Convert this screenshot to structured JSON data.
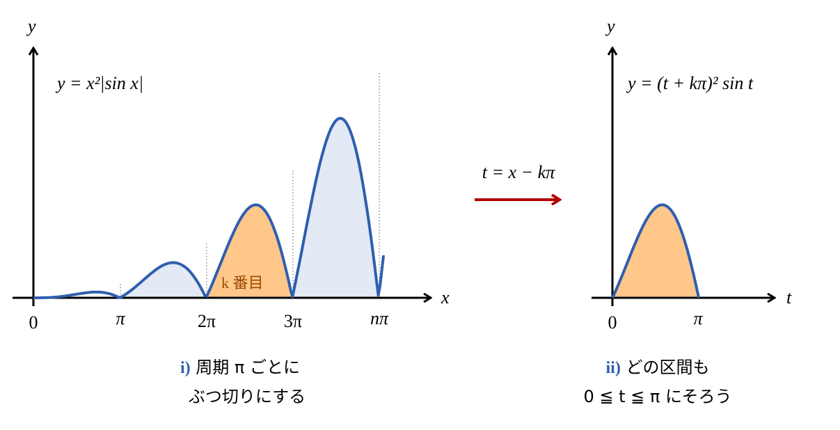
{
  "left": {
    "y_label": "y",
    "x_label": "x",
    "equation": "y = x²|sin x|",
    "ticks": [
      "0",
      "π",
      "2π",
      "3π",
      "nπ"
    ],
    "highlight_label": "k 番目",
    "caption_num": "i)",
    "caption_line1": "周期 π ごとに",
    "caption_line2": "ぶつ切りにする"
  },
  "transform": {
    "label": "t = x − kπ"
  },
  "right": {
    "y_label": "y",
    "x_label": "t",
    "equation": "y = (t + kπ)² sin t",
    "ticks": [
      "0",
      "π"
    ],
    "caption_num": "ii)",
    "caption_line1": "どの区間も",
    "caption_line2": "0 ≦ t ≦ π にそろう"
  }
}
